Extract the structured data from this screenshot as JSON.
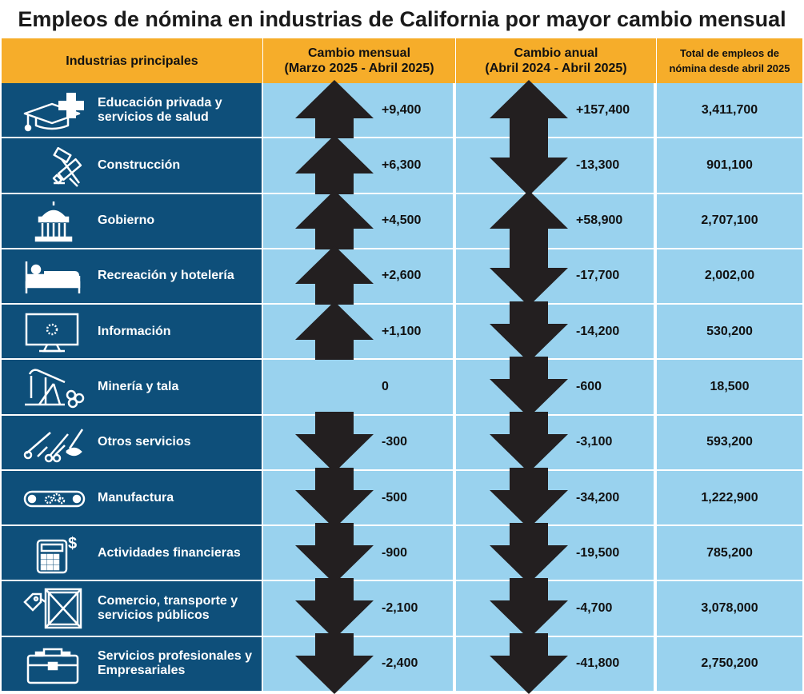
{
  "title": "Empleos de nómina en industrias de California por mayor cambio mensual",
  "headers": {
    "industry": "Industrias principales",
    "monthly_l1": "Cambio mensual",
    "monthly_l2": "(Marzo 2025 - Abril 2025)",
    "annual_l1": "Cambio anual",
    "annual_l2": "(Abril 2024 - Abril 2025)",
    "total_l1": "Total de empleos de",
    "total_l2": "nómina desde abril 2025"
  },
  "colors": {
    "header_bg": "#f6ad2a",
    "industry_bg": "#0e4f7a",
    "data_bg": "#99d2ee",
    "arrow": "#231f20"
  },
  "chart_data": {
    "type": "table",
    "title": "Empleos de nómina en industrias de California por mayor cambio mensual",
    "columns": [
      "Industrias principales",
      "Cambio mensual (Marzo 2025 - Abril 2025)",
      "Cambio anual (Abril 2024 - Abril 2025)",
      "Total de empleos de nómina desde abril 2025"
    ],
    "rows": [
      {
        "icon": "graduation-health-icon",
        "label": "Educación privada y servicios de salud",
        "monthly": "+9,400",
        "monthly_value": 9400,
        "annual": "+157,400",
        "annual_value": 157400,
        "total": "3,411,700"
      },
      {
        "icon": "construction-tools-icon",
        "label": "Construcción",
        "monthly": "+6,300",
        "monthly_value": 6300,
        "annual": "-13,300",
        "annual_value": -13300,
        "total": "901,100"
      },
      {
        "icon": "government-building-icon",
        "label": "Gobierno",
        "monthly": "+4,500",
        "monthly_value": 4500,
        "annual": "+58,900",
        "annual_value": 58900,
        "total": "2,707,100"
      },
      {
        "icon": "bed-icon",
        "label": "Recreación y hotelería",
        "monthly": "+2,600",
        "monthly_value": 2600,
        "annual": "-17,700",
        "annual_value": -17700,
        "total": "2,002,00"
      },
      {
        "icon": "monitor-icon",
        "label": "Información",
        "monthly": "+1,100",
        "monthly_value": 1100,
        "annual": "-14,200",
        "annual_value": -14200,
        "total": "530,200"
      },
      {
        "icon": "oil-pump-logs-icon",
        "label": "Minería y tala",
        "monthly": "0",
        "monthly_value": 0,
        "annual": "-600",
        "annual_value": -600,
        "total": "18,500"
      },
      {
        "icon": "tools-scissors-icon",
        "label": "Otros servicios",
        "monthly": "-300",
        "monthly_value": -300,
        "annual": "-3,100",
        "annual_value": -3100,
        "total": "593,200"
      },
      {
        "icon": "conveyor-gears-icon",
        "label": "Manufactura",
        "monthly": "-500",
        "monthly_value": -500,
        "annual": "-34,200",
        "annual_value": -34200,
        "total": "1,222,900"
      },
      {
        "icon": "calculator-dollar-icon",
        "label": "Actividades financieras",
        "monthly": "-900",
        "monthly_value": -900,
        "annual": "-19,500",
        "annual_value": -19500,
        "total": "785,200"
      },
      {
        "icon": "crate-tag-icon",
        "label": "Comercio, transporte y servicios públicos",
        "monthly": "-2,100",
        "monthly_value": -2100,
        "annual": "-4,700",
        "annual_value": -4700,
        "total": "3,078,000"
      },
      {
        "icon": "toolbox-icon",
        "label": "Servicios profesionales y Empresariales",
        "monthly": "-2,400",
        "monthly_value": -2400,
        "annual": "-41,800",
        "annual_value": -41800,
        "total": "2,750,200"
      }
    ]
  }
}
